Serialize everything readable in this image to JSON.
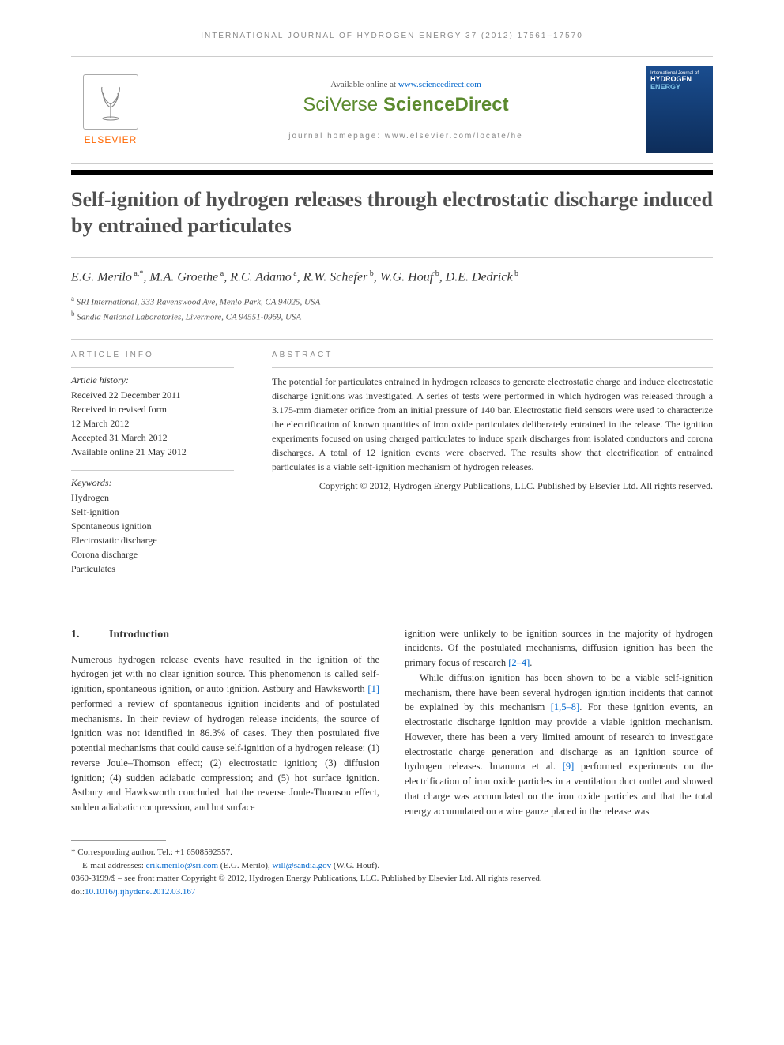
{
  "running_head": "INTERNATIONAL JOURNAL OF HYDROGEN ENERGY 37 (2012) 17561–17570",
  "header": {
    "available_text": "Available online at ",
    "available_link": "www.sciencedirect.com",
    "brand_prefix": "SciVerse ",
    "brand_main": "ScienceDirect",
    "homepage_text": "journal homepage: www.elsevier.com/locate/he",
    "elsevier_label": "ELSEVIER",
    "cover_line1": "International Journal of",
    "cover_line2": "HYDROGEN",
    "cover_line3": "ENERGY"
  },
  "title": "Self-ignition of hydrogen releases through electrostatic discharge induced by entrained particulates",
  "authors_html": "E.G. Merilo<sup> a,*</sup>, M.A. Groethe<sup> a</sup>, R.C. Adamo<sup> a</sup>, R.W. Schefer<sup> b</sup>, W.G. Houf<sup> b</sup>, D.E. Dedrick<sup> b</sup>",
  "affiliations": [
    {
      "sup": "a",
      "text": "SRI International, 333 Ravenswood Ave, Menlo Park, CA 94025, USA"
    },
    {
      "sup": "b",
      "text": "Sandia National Laboratories, Livermore, CA 94551-0969, USA"
    }
  ],
  "article_info": {
    "heading": "ARTICLE INFO",
    "history_label": "Article history:",
    "history": [
      "Received 22 December 2011",
      "Received in revised form",
      "12 March 2012",
      "Accepted 31 March 2012",
      "Available online 21 May 2012"
    ],
    "keywords_label": "Keywords:",
    "keywords": [
      "Hydrogen",
      "Self-ignition",
      "Spontaneous ignition",
      "Electrostatic discharge",
      "Corona discharge",
      "Particulates"
    ]
  },
  "abstract": {
    "heading": "ABSTRACT",
    "text": "The potential for particulates entrained in hydrogen releases to generate electrostatic charge and induce electrostatic discharge ignitions was investigated. A series of tests were performed in which hydrogen was released through a 3.175-mm diameter orifice from an initial pressure of 140 bar. Electrostatic field sensors were used to characterize the electrification of known quantities of iron oxide particulates deliberately entrained in the release. The ignition experiments focused on using charged particulates to induce spark discharges from isolated conductors and corona discharges. A total of 12 ignition events were observed. The results show that electrification of entrained particulates is a viable self-ignition mechanism of hydrogen releases.",
    "copyright": "Copyright © 2012, Hydrogen Energy Publications, LLC. Published by Elsevier Ltd. All rights reserved."
  },
  "section1": {
    "num": "1.",
    "title": "Introduction",
    "col1_html": "Numerous hydrogen release events have resulted in the ignition of the hydrogen jet with no clear ignition source. This phenomenon is called self-ignition, spontaneous ignition, or auto ignition. Astbury and Hawksworth <span class=\"ref-link\">[1]</span> performed a review of spontaneous ignition incidents and of postulated mechanisms. In their review of hydrogen release incidents, the source of ignition was not identified in 86.3% of cases. They then postulated five potential mechanisms that could cause self-ignition of a hydrogen release: (1) reverse Joule–Thomson effect; (2) electrostatic ignition; (3) diffusion ignition; (4) sudden adiabatic compression; and (5) hot surface ignition. Astbury and Hawksworth concluded that the reverse Joule-Thomson effect, sudden adiabatic compression, and hot surface",
    "col2_p1_html": "ignition were unlikely to be ignition sources in the majority of hydrogen incidents. Of the postulated mechanisms, diffusion ignition has been the primary focus of research <span class=\"ref-link\">[2–4]</span>.",
    "col2_p2_html": "While diffusion ignition has been shown to be a viable self-ignition mechanism, there have been several hydrogen ignition incidents that cannot be explained by this mechanism <span class=\"ref-link\">[1,5–8]</span>. For these ignition events, an electrostatic discharge ignition may provide a viable ignition mechanism. However, there has been a very limited amount of research to investigate electrostatic charge generation and discharge as an ignition source of hydrogen releases. Imamura et al. <span class=\"ref-link\">[9]</span> performed experiments on the electrification of iron oxide particles in a ventilation duct outlet and showed that charge was accumulated on the iron oxide particles and that the total energy accumulated on a wire gauze placed in the release was"
  },
  "footer": {
    "corresponding": "* Corresponding author. Tel.: +1 6508592557.",
    "email_label": "E-mail addresses: ",
    "email1": "erik.merilo@sri.com",
    "email1_paren": " (E.G. Merilo), ",
    "email2": "will@sandia.gov",
    "email2_paren": " (W.G. Houf).",
    "issn_line": "0360-3199/$ – see front matter Copyright © 2012, Hydrogen Energy Publications, LLC. Published by Elsevier Ltd. All rights reserved.",
    "doi_label": "doi:",
    "doi": "10.1016/j.ijhydene.2012.03.167"
  },
  "colors": {
    "link": "#0066cc",
    "elsevier_orange": "#ff6600",
    "sciverse_green": "#5b8a2e",
    "cover_bg_top": "#1a4d8f",
    "cover_bg_bottom": "#0d2d5a"
  }
}
